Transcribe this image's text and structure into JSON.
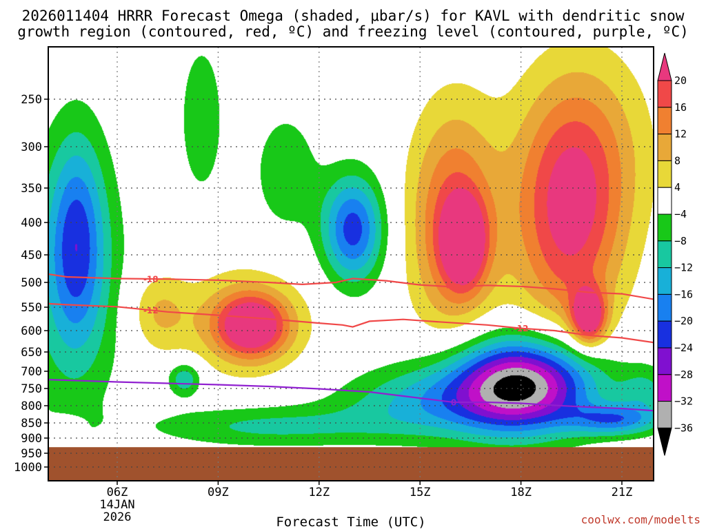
{
  "chart_data": {
    "type": "heatmap",
    "title_line1": "2026011404 HRRR Forecast Omega (shaded, μbar/s) for KAVL with dendritic snow",
    "title_line2": "growth region (contoured, red, ºC) and freezing level (contoured, purple, ºC)",
    "xlabel": "Forecast Time (UTC)",
    "ylabel": "",
    "source": "coolwx.com/modelts",
    "x_range": [
      3.2,
      22.3
    ],
    "y_range": [
      200,
      1050
    ],
    "x_ticks": [
      {
        "hour": 6,
        "label": "06Z",
        "date1": "14JAN",
        "date2": "2026"
      },
      {
        "hour": 9,
        "label": "09Z"
      },
      {
        "hour": 12,
        "label": "12Z"
      },
      {
        "hour": 15,
        "label": "15Z"
      },
      {
        "hour": 18,
        "label": "18Z"
      },
      {
        "hour": 21,
        "label": "21Z"
      }
    ],
    "y_ticks": [
      {
        "p": 250,
        "label": "250"
      },
      {
        "p": 300,
        "label": "300"
      },
      {
        "p": 350,
        "label": "350"
      },
      {
        "p": 400,
        "label": "400"
      },
      {
        "p": 450,
        "label": "450"
      },
      {
        "p": 500,
        "label": "500"
      },
      {
        "p": 550,
        "label": "550"
      },
      {
        "p": 600,
        "label": "600"
      },
      {
        "p": 650,
        "label": "650"
      },
      {
        "p": 700,
        "label": "700"
      },
      {
        "p": 750,
        "label": "750"
      },
      {
        "p": 800,
        "label": "800"
      },
      {
        "p": 850,
        "label": "850"
      },
      {
        "p": 900,
        "label": "900"
      },
      {
        "p": 950,
        "label": "950"
      },
      {
        "p": 1000,
        "label": "1000"
      }
    ],
    "colorbar": [
      {
        "label": "20",
        "color": "#e8387e"
      },
      {
        "label": "16",
        "color": "#f04848"
      },
      {
        "label": "12",
        "color": "#f08030"
      },
      {
        "label": "8",
        "color": "#e8a838"
      },
      {
        "label": "4",
        "color": "#e8d838"
      },
      {
        "label": "−4",
        "color": "#ffffff"
      },
      {
        "label": "−8",
        "color": "#18c818"
      },
      {
        "label": "−12",
        "color": "#18c8a0"
      },
      {
        "label": "−16",
        "color": "#18b0d8"
      },
      {
        "label": "−20",
        "color": "#1880f0"
      },
      {
        "label": "−24",
        "color": "#1830e0"
      },
      {
        "label": "−28",
        "color": "#8010d0"
      },
      {
        "label": "−32",
        "color": "#c010c8"
      },
      {
        "label": "−36",
        "color": "#b0b0b0"
      },
      {
        "label": "",
        "color": "#000000"
      }
    ],
    "ground": {
      "color": "#a0522d",
      "top_pressure": 930
    },
    "omega_blobs": [
      {
        "hour": 4.4,
        "p": 850,
        "rx": 0.45,
        "ry": 22,
        "peak": 7
      },
      {
        "hour": 4.6,
        "p": 500,
        "rx": 1.6,
        "ry": 340,
        "peak": -10
      },
      {
        "hour": 4.8,
        "p": 420,
        "rx": 0.8,
        "ry": 190,
        "peak": -15
      },
      {
        "hour": 7.2,
        "p": 560,
        "rx": 0.9,
        "ry": 90,
        "peak": 8
      },
      {
        "hour": 9.8,
        "p": 580,
        "rx": 1.8,
        "ry": 120,
        "peak": 11
      },
      {
        "hour": 10.0,
        "p": 590,
        "rx": 1.0,
        "ry": 70,
        "peak": 20
      },
      {
        "hour": 8.5,
        "p": 270,
        "rx": 0.7,
        "ry": 100,
        "peak": -7
      },
      {
        "hour": 11.0,
        "p": 330,
        "rx": 1.0,
        "ry": 90,
        "peak": -7
      },
      {
        "hour": 8.0,
        "p": 720,
        "rx": 0.5,
        "ry": 50,
        "peak": -12
      },
      {
        "hour": 10.5,
        "p": 860,
        "rx": 3.6,
        "ry": 70,
        "peak": -9
      },
      {
        "hour": 13.0,
        "p": 410,
        "rx": 0.9,
        "ry": 90,
        "peak": -22
      },
      {
        "hour": 16.0,
        "p": 400,
        "rx": 1.3,
        "ry": 210,
        "peak": 18
      },
      {
        "hour": 16.3,
        "p": 430,
        "rx": 0.6,
        "ry": 70,
        "peak": 22
      },
      {
        "hour": 19.4,
        "p": 400,
        "rx": 1.6,
        "ry": 220,
        "peak": 19
      },
      {
        "hour": 20.0,
        "p": 300,
        "rx": 2.0,
        "ry": 140,
        "peak": 8
      },
      {
        "hour": 20.0,
        "p": 570,
        "rx": 0.5,
        "ry": 60,
        "peak": 24
      },
      {
        "hour": 18.0,
        "p": 740,
        "rx": 2.2,
        "ry": 140,
        "peak": -38
      },
      {
        "hour": 15.0,
        "p": 790,
        "rx": 2.5,
        "ry": 110,
        "peak": -11
      },
      {
        "hour": 20.8,
        "p": 840,
        "rx": 1.3,
        "ry": 50,
        "peak": -16
      },
      {
        "hour": 21.7,
        "p": 760,
        "rx": 0.8,
        "ry": 80,
        "peak": -8
      }
    ],
    "contours": [
      {
        "name": "-18 C isotherm",
        "label": "-18",
        "color": "#f04848",
        "label_hours": [
          7.0,
          16.0
        ],
        "points": [
          [
            3.2,
            478
          ],
          [
            4.5,
            490
          ],
          [
            6.0,
            493
          ],
          [
            7.5,
            494
          ],
          [
            9.0,
            496
          ],
          [
            10.5,
            500
          ],
          [
            11.5,
            504
          ],
          [
            12.5,
            500
          ],
          [
            13.0,
            493
          ],
          [
            14.0,
            497
          ],
          [
            15.0,
            505
          ],
          [
            16.0,
            509
          ],
          [
            17.0,
            506
          ],
          [
            18.0,
            508
          ],
          [
            19.0,
            513
          ],
          [
            20.0,
            520
          ],
          [
            21.0,
            523
          ],
          [
            22.3,
            538
          ]
        ]
      },
      {
        "name": "-12 C isotherm",
        "label": "-12",
        "color": "#f04848",
        "label_hours": [
          7.0,
          18.0
        ],
        "points": [
          [
            3.2,
            540
          ],
          [
            4.5,
            545
          ],
          [
            6.0,
            549
          ],
          [
            7.5,
            560
          ],
          [
            9.0,
            567
          ],
          [
            10.5,
            575
          ],
          [
            12.0,
            584
          ],
          [
            12.7,
            588
          ],
          [
            13.0,
            592
          ],
          [
            13.5,
            580
          ],
          [
            14.5,
            576
          ],
          [
            15.5,
            581
          ],
          [
            17.0,
            588
          ],
          [
            18.0,
            595
          ],
          [
            19.0,
            600
          ],
          [
            20.0,
            611
          ],
          [
            21.0,
            617
          ],
          [
            22.3,
            632
          ]
        ]
      },
      {
        "name": "0 C freezing level",
        "label": "0",
        "color": "#9020d0",
        "label_hours": [
          16.0
        ],
        "points": [
          [
            3.2,
            722
          ],
          [
            4.5,
            726
          ],
          [
            6.0,
            731
          ],
          [
            7.5,
            735
          ],
          [
            9.0,
            739
          ],
          [
            10.5,
            744
          ],
          [
            12.0,
            751
          ],
          [
            13.5,
            760
          ],
          [
            15.0,
            778
          ],
          [
            16.0,
            790
          ],
          [
            17.0,
            790
          ],
          [
            18.0,
            793
          ],
          [
            19.0,
            799
          ],
          [
            20.0,
            804
          ],
          [
            21.0,
            808
          ],
          [
            22.3,
            817
          ]
        ]
      }
    ]
  }
}
